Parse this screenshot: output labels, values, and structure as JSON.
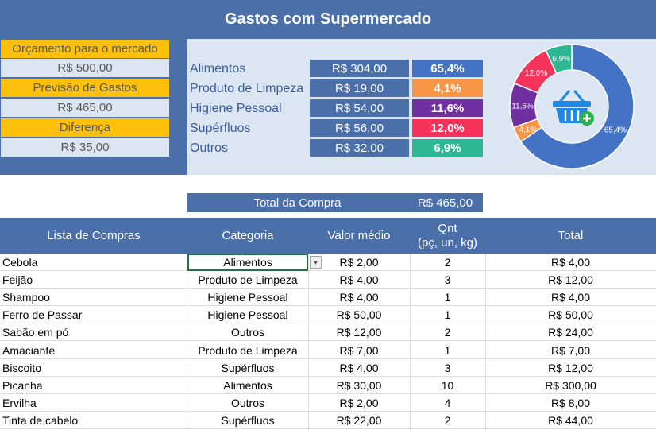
{
  "title": "Gastos com Supermercado",
  "budget": {
    "orcamento_label": "Orçamento para o mercado",
    "orcamento_value": "R$ 500,00",
    "previsao_label": "Previsão de Gastos",
    "previsao_value": "R$ 465,00",
    "diferenca_label": "Diferença",
    "diferenca_value": "R$ 35,00"
  },
  "categories": [
    {
      "name": "Alimentos",
      "value": "R$ 304,00",
      "pct": "65,4%",
      "color": "#4472c4"
    },
    {
      "name": "Produto de Limpeza",
      "value": "R$ 19,00",
      "pct": "4,1%",
      "color": "#f79646"
    },
    {
      "name": "Higiene Pessoal",
      "value": "R$ 54,00",
      "pct": "11,6%",
      "color": "#7030a0"
    },
    {
      "name": "Supérfluos",
      "value": "R$ 56,00",
      "pct": "12,0%",
      "color": "#f5335b"
    },
    {
      "name": "Outros",
      "value": "R$ 32,00",
      "pct": "6,9%",
      "color": "#2cb895"
    }
  ],
  "chart_data": {
    "type": "pie",
    "categories": [
      "Alimentos",
      "Produto de Limpeza",
      "Higiene Pessoal",
      "Supérfluos",
      "Outros"
    ],
    "values": [
      65.4,
      4.1,
      11.6,
      12.0,
      6.9
    ],
    "labels": [
      "65,4%",
      "4,1%",
      "11,6%",
      "12,0%",
      "6,9%"
    ],
    "colors": [
      "#4472c4",
      "#f79646",
      "#7030a0",
      "#f5335b",
      "#2cb895"
    ],
    "title": ""
  },
  "basket_icon": "shopping-basket-add-icon",
  "total": {
    "label": "Total da Compra",
    "value": "R$ 465,00"
  },
  "table": {
    "headers": {
      "item": "Lista de Compras",
      "category": "Categoria",
      "value": "Valor médio",
      "qnt_line1": "Qnt",
      "qnt_line2": "(pç, un, kg)",
      "total": "Total"
    },
    "rows": [
      {
        "item": "Cebola",
        "category": "Alimentos",
        "value": "R$ 2,00",
        "qnt": "2",
        "total": "R$ 4,00"
      },
      {
        "item": "Feijão",
        "category": "Produto de Limpeza",
        "value": "R$ 4,00",
        "qnt": "3",
        "total": "R$ 12,00"
      },
      {
        "item": "Shampoo",
        "category": "Higiene Pessoal",
        "value": "R$ 4,00",
        "qnt": "1",
        "total": "R$ 4,00"
      },
      {
        "item": "Ferro de Passar",
        "category": "Higiene Pessoal",
        "value": "R$ 50,00",
        "qnt": "1",
        "total": "R$ 50,00"
      },
      {
        "item": "Sabão em pó",
        "category": "Outros",
        "value": "R$ 12,00",
        "qnt": "2",
        "total": "R$ 24,00"
      },
      {
        "item": "Amaciante",
        "category": "Produto de Limpeza",
        "value": "R$ 7,00",
        "qnt": "1",
        "total": "R$ 7,00"
      },
      {
        "item": "Biscoito",
        "category": "Supérfluos",
        "value": "R$ 4,00",
        "qnt": "3",
        "total": "R$ 12,00"
      },
      {
        "item": "Picanha",
        "category": "Alimentos",
        "value": "R$ 30,00",
        "qnt": "10",
        "total": "R$ 300,00"
      },
      {
        "item": "Ervilha",
        "category": "Outros",
        "value": "R$ 2,00",
        "qnt": "4",
        "total": "R$ 8,00"
      },
      {
        "item": "Tinta de cabelo",
        "category": "Supérfluos",
        "value": "R$ 22,00",
        "qnt": "2",
        "total": "R$ 44,00"
      }
    ]
  }
}
